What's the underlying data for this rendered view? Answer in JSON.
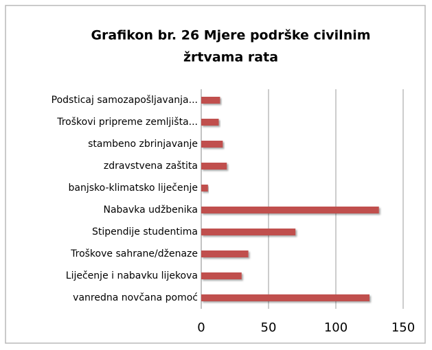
{
  "chart_data": {
    "type": "bar",
    "orientation": "horizontal",
    "title": [
      "Grafikon br. 26 Mjere podrške civilnim",
      "žrtvama rata"
    ],
    "categories": [
      "Podsticaj samozapošljavanja...",
      "Troškovi pripreme zemljišta...",
      "stambeno zbrinjavanje",
      "zdravstvena zaštita",
      "banjsko-klimatsko liječenje",
      "Nabavka udžbenika",
      "Stipendije studentima",
      "Troškove sahrane/dženaze",
      "Liječenje i nabavku lijekova",
      "vanredna novčana pomoć"
    ],
    "values": [
      14,
      13,
      16,
      19,
      5,
      132,
      70,
      35,
      30,
      125
    ],
    "color": "#c0504d",
    "xlim": [
      0,
      150
    ],
    "xticks": [
      0,
      50,
      100,
      150
    ],
    "grid": true
  }
}
